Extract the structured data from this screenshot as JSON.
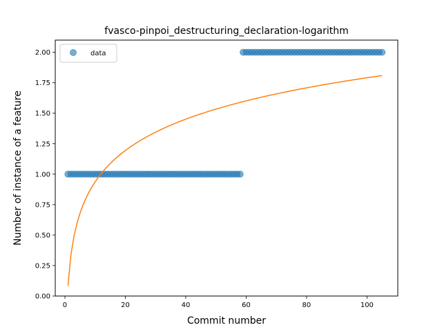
{
  "chart_data": {
    "type": "scatter",
    "title": "fvasco-pinpoi_destructuring_declaration-logarithm",
    "xlabel": "Commit number",
    "ylabel": "Number of instance of a feature",
    "xlim": [
      -3.2,
      110.2
    ],
    "ylim": [
      -0.0,
      2.1
    ],
    "xticks": [
      0,
      20,
      40,
      60,
      80,
      100
    ],
    "yticks": [
      0.0,
      0.25,
      0.5,
      0.75,
      1.0,
      1.25,
      1.5,
      1.75,
      2.0
    ],
    "xtick_labels": [
      "0",
      "20",
      "40",
      "60",
      "80",
      "100"
    ],
    "ytick_labels": [
      "0.00",
      "0.25",
      "0.50",
      "0.75",
      "1.00",
      "1.25",
      "1.50",
      "1.75",
      "2.00"
    ],
    "legend": {
      "position": "upper-left",
      "entries": [
        "data"
      ]
    },
    "grid": false,
    "series": [
      {
        "name": "data",
        "kind": "scatter",
        "color": "#1f77b4",
        "segments": [
          {
            "x_from": 1,
            "x_to": 58,
            "y": 1
          },
          {
            "x_from": 59,
            "x_to": 105,
            "y": 2
          }
        ]
      },
      {
        "kind": "line",
        "color": "#ff7f0e",
        "model": "logarithmic fit",
        "a": 0.0826,
        "b": 0.371,
        "x_from": 1,
        "x_to": 105
      }
    ]
  }
}
